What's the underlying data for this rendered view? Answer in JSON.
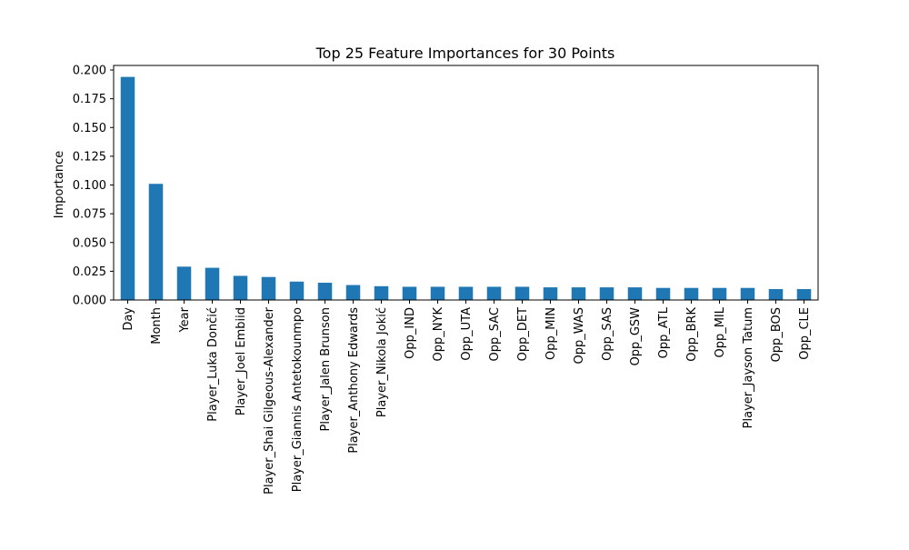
{
  "chart_data": {
    "type": "bar",
    "title": "Top 25 Feature Importances for 30 Points",
    "xlabel": "",
    "ylabel": "Importance",
    "ylim": [
      0,
      0.2
    ],
    "yticks": [
      "0.000",
      "0.025",
      "0.050",
      "0.075",
      "0.100",
      "0.125",
      "0.150",
      "0.175",
      "0.200"
    ],
    "grid": false,
    "bar_color": "#1f77b4",
    "categories": [
      "Day",
      "Month",
      "Year",
      "Player_Luka Dončić",
      "Player_Joel Embiid",
      "Player_Shai Gilgeous-Alexander",
      "Player_Giannis Antetokounmpo",
      "Player_Jalen Brunson",
      "Player_Anthony Edwards",
      "Player_Nikola Jokić",
      "Opp_IND",
      "Opp_NYK",
      "Opp_UTA",
      "Opp_SAC",
      "Opp_DET",
      "Opp_MIN",
      "Opp_WAS",
      "Opp_SAS",
      "Opp_GSW",
      "Opp_ATL",
      "Opp_BRK",
      "Opp_MIL",
      "Player_Jayson Tatum",
      "Opp_BOS",
      "Opp_CLE"
    ],
    "values": [
      0.194,
      0.101,
      0.029,
      0.028,
      0.021,
      0.02,
      0.016,
      0.015,
      0.013,
      0.012,
      0.0115,
      0.0115,
      0.0115,
      0.0115,
      0.0115,
      0.011,
      0.011,
      0.011,
      0.011,
      0.0105,
      0.0105,
      0.0105,
      0.0105,
      0.0095,
      0.0095
    ]
  }
}
